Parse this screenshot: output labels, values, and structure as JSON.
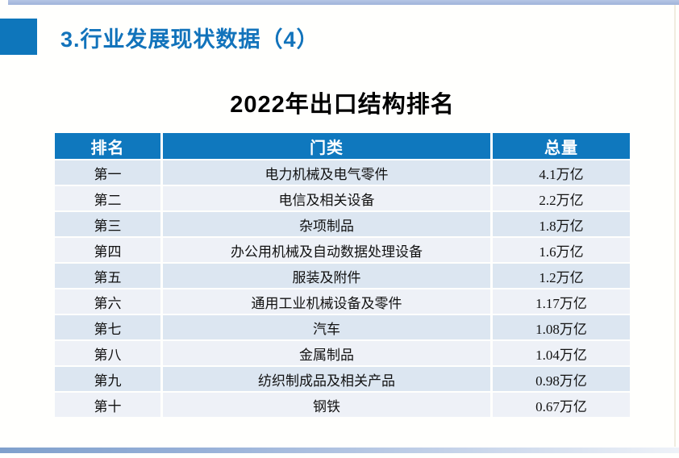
{
  "page": {
    "heading": "3.行业发展现状数据（4）",
    "table_title": "2022年出口结构排名"
  },
  "colors": {
    "accent_blue": "#0e76bb",
    "heading_text_blue": "#1273bb",
    "table_header_blue": "#0f78be",
    "row_odd_blue": "#dce6f1",
    "row_even_light": "#eef1f7",
    "top_bar_blue": "#a9bcdf",
    "bottom_bar_blue": "#7fa0cc"
  },
  "table": {
    "columns": [
      "排名",
      "门类",
      "总量"
    ],
    "rows": [
      [
        "第一",
        "电力机械及电气零件",
        "4.1万亿"
      ],
      [
        "第二",
        "电信及相关设备",
        "2.2万亿"
      ],
      [
        "第三",
        "杂项制品",
        "1.8万亿"
      ],
      [
        "第四",
        "办公用机械及自动数据处理设备",
        "1.6万亿"
      ],
      [
        "第五",
        "服装及附件",
        "1.2万亿"
      ],
      [
        "第六",
        "通用工业机械设备及零件",
        "1.17万亿"
      ],
      [
        "第七",
        "汽车",
        "1.08万亿"
      ],
      [
        "第八",
        "金属制品",
        "1.04万亿"
      ],
      [
        "第九",
        "纺织制成品及相关产品",
        "0.98万亿"
      ],
      [
        "第十",
        "钢铁",
        "0.67万亿"
      ]
    ]
  },
  "chart_data": {
    "type": "table",
    "title": "2022年出口结构排名",
    "columns": [
      "排名",
      "门类",
      "总量"
    ],
    "categories": [
      "电力机械及电气零件",
      "电信及相关设备",
      "杂项制品",
      "办公用机械及自动数据处理设备",
      "服装及附件",
      "通用工业机械设备及零件",
      "汽车",
      "金属制品",
      "纺织制成品及相关产品",
      "钢铁"
    ],
    "values_wan_yi": [
      4.1,
      2.2,
      1.8,
      1.6,
      1.2,
      1.17,
      1.08,
      1.04,
      0.98,
      0.67
    ]
  }
}
